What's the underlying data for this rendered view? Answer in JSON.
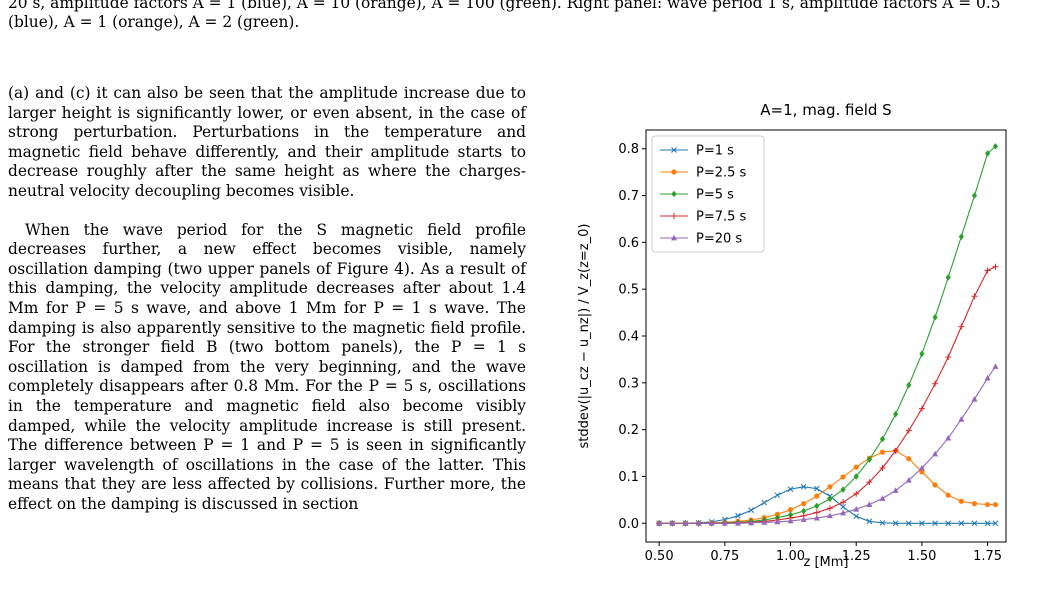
{
  "caption": "20 s, amplitude factors A = 1 (blue), A = 10 (orange), A = 100 (green). Right panel: wave period 1 s, amplitude factors A = 0.5 (blue), A = 1 (orange), A = 2 (green).",
  "paragraphs": [
    "(a) and (c) it can also be seen that the amplitude increase due to larger height is significantly lower, or even absent, in the case of strong perturbation. Perturbations in the temperature and magnetic field behave differently, and their amplitude starts to decrease roughly after the same height as where the charges-neutral velocity decoupling becomes visible.",
    "When the wave period for the S magnetic field profile decreases further, a new effect becomes visible, namely oscillation damping (two upper panels of Figure 4). As a result of this damping, the velocity amplitude decreases after about 1.4 Mm for P = 5 s wave, and above 1 Mm for P = 1 s wave. The damping is also apparently sensitive to the magnetic field profile. For the stronger field B (two bottom panels), the P = 1 s oscillation is damped from the very beginning, and the wave completely disappears after 0.8 Mm. For the P = 5 s, oscillations in the temperature and magnetic field also become visibly damped, while the velocity amplitude increase is still present. The difference between P = 1 and P = 5 is seen in significantly larger wavelength of oscillations in the case of the latter. This means that they are less affected by collisions. Further more, the effect on the damping is discussed in section"
  ],
  "chart_data": {
    "type": "line",
    "title": "A=1, mag. field S",
    "xlabel": "z [Mm]",
    "ylabel": "stddev(|u_cz − u_nz|) / V_z(z=z_0)",
    "xlim": [
      0.45,
      1.82
    ],
    "ylim": [
      -0.04,
      0.84
    ],
    "xticks": [
      0.5,
      0.75,
      1.0,
      1.25,
      1.5,
      1.75
    ],
    "xtick_labels": [
      "0.50",
      "0.75",
      "1.00",
      "1.25",
      "1.50",
      "1.75"
    ],
    "yticks": [
      0.0,
      0.1,
      0.2,
      0.3,
      0.4,
      0.5,
      0.6,
      0.7,
      0.8
    ],
    "ytick_labels": [
      "0.0",
      "0.1",
      "0.2",
      "0.3",
      "0.4",
      "0.5",
      "0.6",
      "0.7",
      "0.8"
    ],
    "legend_position": "top-left",
    "x": [
      0.5,
      0.55,
      0.6,
      0.65,
      0.7,
      0.75,
      0.8,
      0.85,
      0.9,
      0.95,
      1.0,
      1.05,
      1.1,
      1.15,
      1.2,
      1.25,
      1.3,
      1.35,
      1.4,
      1.45,
      1.5,
      1.55,
      1.6,
      1.65,
      1.7,
      1.75,
      1.78
    ],
    "series": [
      {
        "name": "P=1 s",
        "color": "#1f77b4",
        "marker": "x",
        "values": [
          0,
          0,
          0,
          0.001,
          0.003,
          0.008,
          0.016,
          0.028,
          0.044,
          0.06,
          0.073,
          0.078,
          0.074,
          0.058,
          0.035,
          0.015,
          0.004,
          0.001,
          0,
          0,
          0,
          0,
          0,
          0,
          0,
          0,
          0
        ]
      },
      {
        "name": "P=2.5 s",
        "color": "#ff7f0e",
        "marker": "o",
        "values": [
          0,
          0,
          0,
          0,
          0.001,
          0.002,
          0.004,
          0.007,
          0.012,
          0.019,
          0.029,
          0.042,
          0.058,
          0.078,
          0.099,
          0.12,
          0.139,
          0.152,
          0.155,
          0.138,
          0.11,
          0.082,
          0.06,
          0.047,
          0.042,
          0.04,
          0.04
        ]
      },
      {
        "name": "P=5 s",
        "color": "#2ca02c",
        "marker": "D",
        "values": [
          0,
          0,
          0,
          0,
          0,
          0.001,
          0.002,
          0.004,
          0.007,
          0.012,
          0.018,
          0.026,
          0.037,
          0.052,
          0.072,
          0.1,
          0.136,
          0.18,
          0.233,
          0.295,
          0.362,
          0.44,
          0.525,
          0.612,
          0.7,
          0.79,
          0.805
        ]
      },
      {
        "name": "P=7.5 s",
        "color": "#d62728",
        "marker": "+",
        "values": [
          0,
          0,
          0,
          0,
          0,
          0,
          0.001,
          0.002,
          0.004,
          0.007,
          0.011,
          0.016,
          0.023,
          0.032,
          0.045,
          0.063,
          0.088,
          0.118,
          0.155,
          0.198,
          0.245,
          0.298,
          0.355,
          0.42,
          0.485,
          0.54,
          0.548
        ]
      },
      {
        "name": "P=20 s",
        "color": "#9467bd",
        "marker": "^",
        "values": [
          0,
          0,
          0,
          0,
          0,
          0,
          0,
          0.001,
          0.002,
          0.003,
          0.005,
          0.008,
          0.011,
          0.016,
          0.022,
          0.03,
          0.04,
          0.053,
          0.07,
          0.092,
          0.118,
          0.148,
          0.182,
          0.222,
          0.265,
          0.31,
          0.335
        ]
      }
    ]
  }
}
